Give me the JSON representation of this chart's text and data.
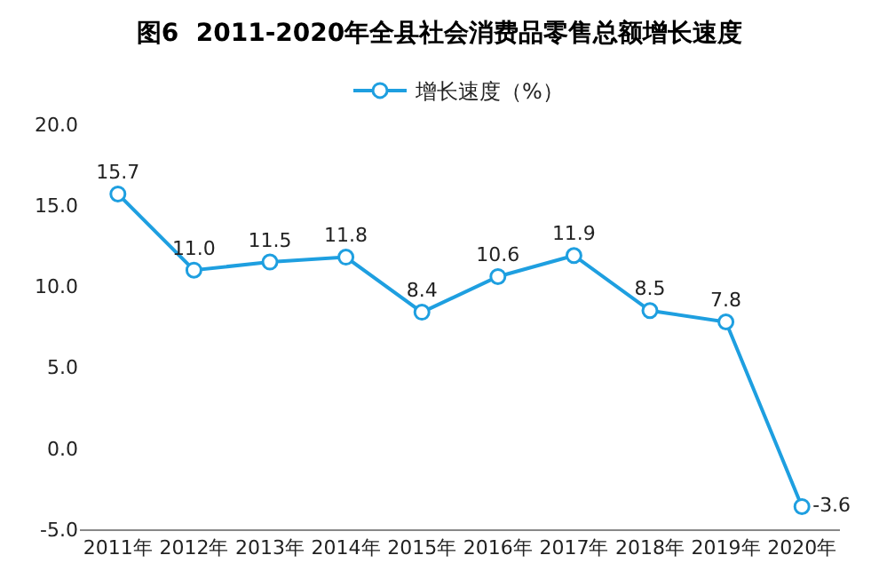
{
  "chart_data": {
    "type": "line",
    "title": "图6  2011-2020年全县社会消费品零售总额增长速度",
    "categories": [
      "2011年",
      "2012年",
      "2013年",
      "2014年",
      "2015年",
      "2016年",
      "2017年",
      "2018年",
      "2019年",
      "2020年"
    ],
    "series": [
      {
        "name": "增长速度（%）",
        "color": "#1e9fe0",
        "values": [
          15.7,
          11.0,
          11.5,
          11.8,
          8.4,
          10.6,
          11.9,
          8.5,
          7.8,
          -3.6
        ],
        "value_labels": [
          "15.7",
          "11.0",
          "11.5",
          "11.8",
          "8.4",
          "10.6",
          "11.9",
          "8.5",
          "7.8",
          "-3.6"
        ]
      }
    ],
    "ylim": [
      -5,
      20
    ],
    "yticks": [
      {
        "value": -5,
        "label": "-5.0"
      },
      {
        "value": 0,
        "label": "0.0"
      },
      {
        "value": 5,
        "label": "5.0"
      },
      {
        "value": 10,
        "label": "10.0"
      },
      {
        "value": 15,
        "label": "15.0"
      },
      {
        "value": 20,
        "label": "20.0"
      }
    ],
    "grid": false,
    "legend": "top",
    "marker": "circle",
    "line_style": "solid"
  }
}
